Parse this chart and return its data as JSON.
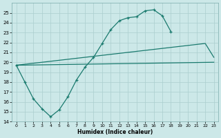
{
  "xlabel": "Humidex (Indice chaleur)",
  "line_color": "#1a7a6e",
  "bg_color": "#cce8e8",
  "grid_color": "#aacece",
  "xlim": [
    -0.5,
    23.5
  ],
  "ylim": [
    14,
    26
  ],
  "yticks": [
    14,
    15,
    16,
    17,
    18,
    19,
    20,
    21,
    22,
    23,
    24,
    25
  ],
  "xticks": [
    0,
    1,
    2,
    3,
    4,
    5,
    6,
    7,
    8,
    9,
    10,
    11,
    12,
    13,
    14,
    15,
    16,
    17,
    18,
    19,
    20,
    21,
    22,
    23
  ],
  "curve_x": [
    0,
    1,
    2,
    3,
    4,
    5,
    6,
    7,
    8,
    9,
    10,
    11,
    12,
    13,
    14,
    15,
    16,
    17,
    18
  ],
  "curve_y": [
    19.7,
    18.0,
    16.3,
    15.3,
    14.5,
    15.2,
    16.5,
    18.2,
    19.5,
    20.5,
    21.9,
    23.3,
    24.2,
    24.5,
    24.6,
    25.2,
    25.3,
    24.7,
    23.1
  ],
  "line2_x": [
    0,
    22,
    23
  ],
  "line2_y": [
    19.7,
    21.9,
    20.5
  ],
  "line3_x": [
    0,
    23
  ],
  "line3_y": [
    19.7,
    20.0
  ]
}
